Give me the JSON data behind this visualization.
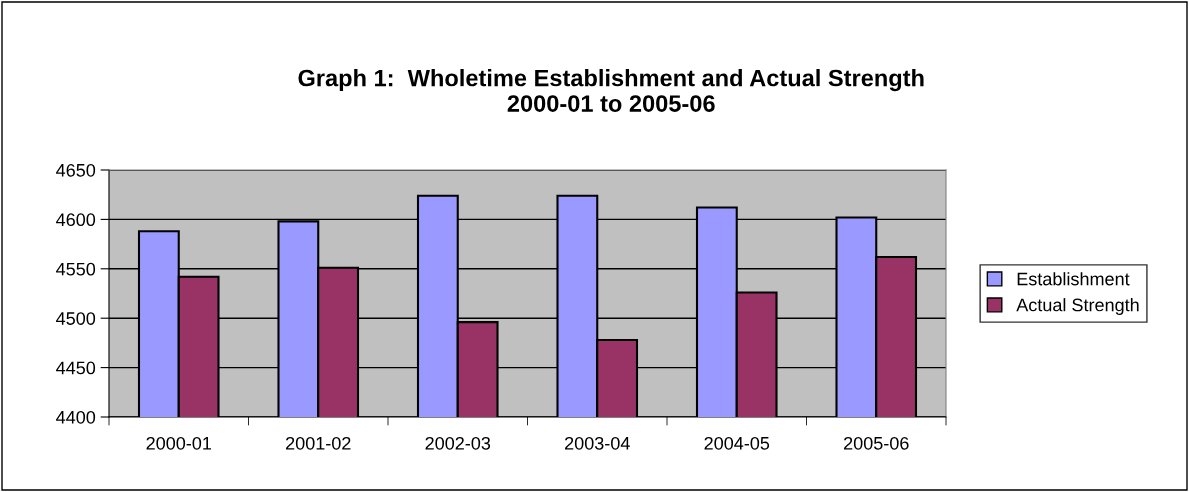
{
  "chart_data": {
    "type": "bar",
    "title": "Graph 1:  Wholetime Establishment and Actual Strength\n2000-01 to 2005-06",
    "categories": [
      "2000-01",
      "2001-02",
      "2002-03",
      "2003-04",
      "2004-05",
      "2005-06"
    ],
    "series": [
      {
        "name": "Establishment",
        "color": "#9999ff",
        "values": [
          4588,
          4598,
          4624,
          4624,
          4612,
          4602
        ]
      },
      {
        "name": "Actual Strength",
        "color": "#993366",
        "values": [
          4542,
          4551,
          4496,
          4478,
          4526,
          4562
        ]
      }
    ],
    "ylim": [
      4400,
      4650
    ],
    "yticks": [
      4400,
      4450,
      4500,
      4550,
      4600,
      4650
    ],
    "grid": "y",
    "legend": "right"
  }
}
